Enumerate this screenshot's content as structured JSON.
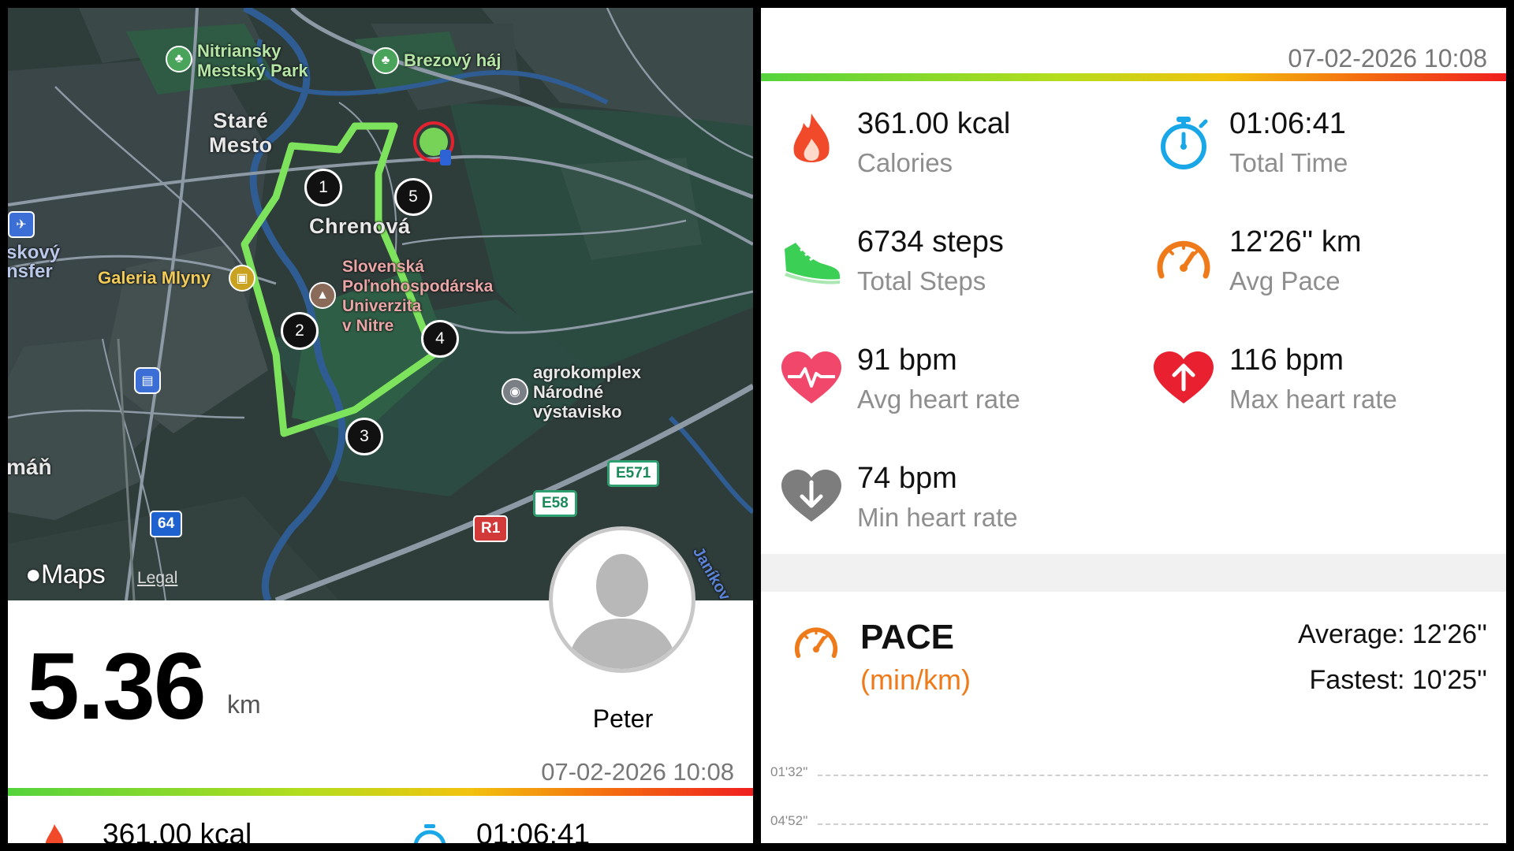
{
  "map": {
    "labels": {
      "park1_line1": "Nitriansky",
      "park1_line2": "Mestský Park",
      "park2": "Brezový háj",
      "district1_line1": "Staré",
      "district1_line2": "Mesto",
      "district2": "Chrenová",
      "mall": "Galeria Mlyny",
      "university_line1": "Slovenská",
      "university_line2": "Poľnohospodárska",
      "university_line3": "Univerzita",
      "university_line4": "v Nitre",
      "expo_line1": "agrokomplex",
      "expo_line2": "Národné",
      "expo_line3": "výstavisko",
      "edge_top": "skový",
      "edge_bottom": "nsfer",
      "edge_town": "máň",
      "road_side": "Janíkov"
    },
    "markers": [
      "1",
      "2",
      "3",
      "4",
      "5"
    ],
    "shields": {
      "e571": "E571",
      "e58": "E58",
      "r1": "R1",
      "r64": "64"
    },
    "brand": "Maps",
    "legal": "Legal",
    "route_color": "#7ee35c",
    "icons": [
      "tree-icon",
      "shopping-bag-icon",
      "graduation-cap-icon",
      "stadium-icon",
      "train-icon",
      "airport-icon"
    ]
  },
  "summary": {
    "distance": "5.36",
    "distance_unit": "km",
    "user_name": "Peter",
    "date": "07-02-2026 10:08",
    "peek_calories": "361.00 kcal",
    "peek_time": "01:06:41"
  },
  "stats": {
    "date": "07-02-2026 10:08",
    "calories": {
      "value": "361.00 kcal",
      "label": "Calories",
      "icon": "flame-icon"
    },
    "total_time": {
      "value": "01:06:41",
      "label": "Total Time",
      "icon": "stopwatch-icon"
    },
    "steps": {
      "value": "6734 steps",
      "label": "Total Steps",
      "icon": "shoe-icon"
    },
    "avg_pace": {
      "value": "12'26'' km",
      "label": "Avg Pace",
      "icon": "speedometer-icon"
    },
    "avg_hr": {
      "value": "91 bpm",
      "label": "Avg heart rate",
      "icon": "heart-pulse-icon"
    },
    "max_hr": {
      "value": "116 bpm",
      "label": "Max heart rate",
      "icon": "heart-up-icon"
    },
    "min_hr": {
      "value": "74 bpm",
      "label": "Min heart rate",
      "icon": "heart-down-icon"
    }
  },
  "pace": {
    "title": "PACE",
    "unit": "(min/km)",
    "average": "Average: 12'26''",
    "fastest": "Fastest: 10'25''",
    "gridlines": [
      "01'32''",
      "04'52''"
    ]
  },
  "colors": {
    "accent_orange": "#ef7a1a",
    "heart_pink": "#f0476a",
    "heart_red": "#e8202f",
    "timer_blue": "#1aa7e8",
    "shoe_green": "#3ccf55"
  }
}
